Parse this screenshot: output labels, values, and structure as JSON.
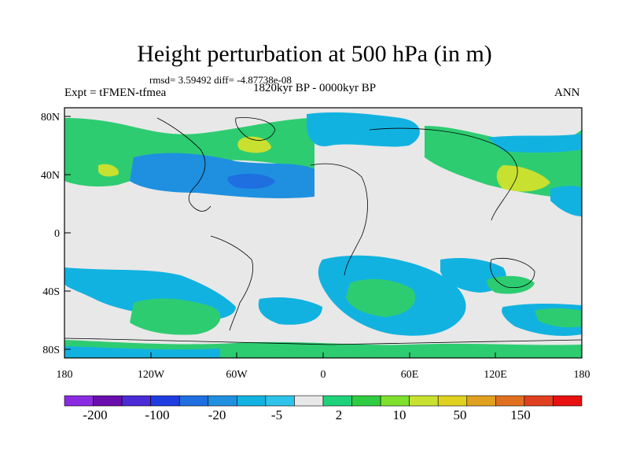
{
  "title": "Height perturbation at 500 hPa (in m)",
  "stats": "rmsd= 3.59492 diff= -4.87738e-08",
  "left_label": "Expt = tFMEN-tfmea",
  "center_label": "1820kyr BP - 0000kyr BP",
  "right_label": "ANN",
  "lat_ticks": [
    "80N",
    "40N",
    "0",
    "40S",
    "80S"
  ],
  "lon_ticks": [
    "180",
    "120W",
    "60W",
    "0",
    "60E",
    "120E",
    "180"
  ],
  "colorbar_labels": [
    "-200",
    "-100",
    "-20",
    "-5",
    "2",
    "10",
    "50",
    "150"
  ],
  "colorbar_colors": [
    "#8a2be2",
    "#6a0dad",
    "#4b2bd6",
    "#1e3ce0",
    "#1f6fe0",
    "#1f90e0",
    "#12b2e0",
    "#2ec3e8",
    "#e8e8e8",
    "#1fd27a",
    "#2ecc40",
    "#7fe02e",
    "#c8e030",
    "#e0d020",
    "#e0a020",
    "#e07020",
    "#e04020",
    "#e81010"
  ]
}
